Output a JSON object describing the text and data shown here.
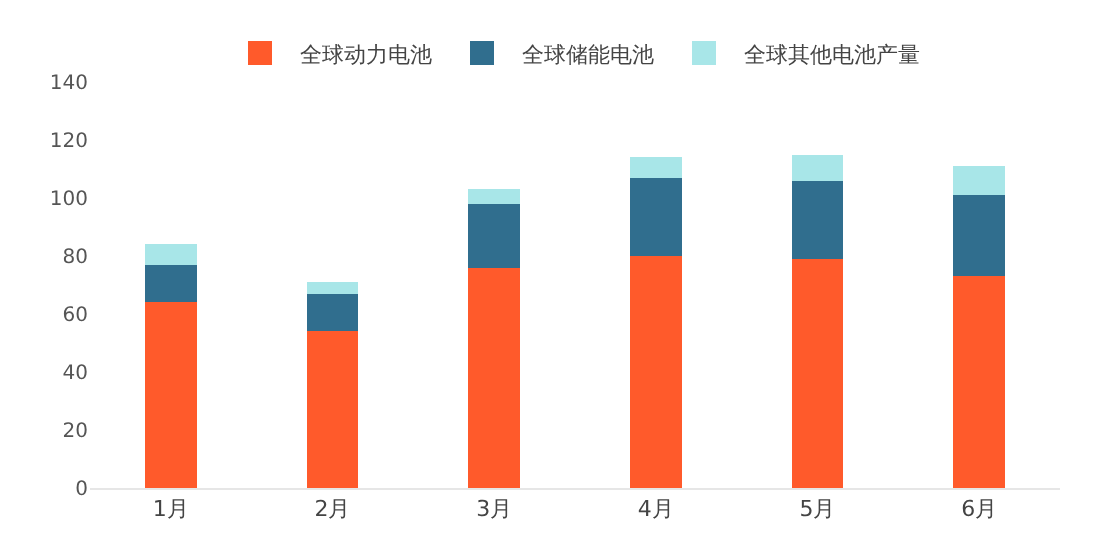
{
  "chart_data": {
    "type": "bar",
    "stacked": true,
    "categories": [
      "1月",
      "2月",
      "3月",
      "4月",
      "5月",
      "6月"
    ],
    "series": [
      {
        "name": "全球动力电池",
        "color": "#ff5a2b",
        "values": [
          64,
          54,
          76,
          80,
          79,
          73
        ]
      },
      {
        "name": "全球储能电池",
        "color": "#306e8e",
        "values": [
          13,
          13,
          22,
          27,
          27,
          28
        ]
      },
      {
        "name": "全球其他电池产量",
        "color": "#a8e6e8",
        "values": [
          7,
          4,
          5,
          7,
          9,
          10
        ]
      }
    ],
    "ylim": [
      0,
      140
    ],
    "yticks": [
      0,
      20,
      40,
      60,
      80,
      100,
      120,
      140
    ],
    "grid": false,
    "legend": "top"
  }
}
